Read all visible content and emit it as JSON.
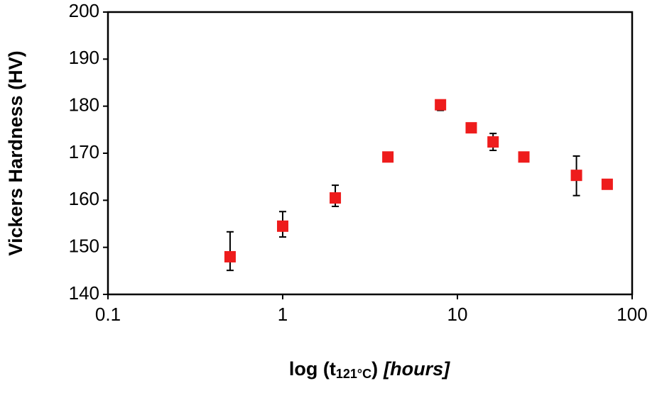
{
  "chart_data": {
    "type": "scatter",
    "x_label": [
      "log (t",
      "121°C",
      ")",
      "[hours]"
    ],
    "y_label": "Vickers Hardness (HV)",
    "x": [
      0.5,
      1,
      2,
      4,
      8,
      12,
      16,
      24,
      48,
      72
    ],
    "series": [
      {
        "color": "#ee1c1c",
        "values": [
          148,
          154.5,
          160.5,
          169.2,
          180.3,
          175.4,
          172.4,
          169.2,
          165.3,
          163.4
        ],
        "errors_plus": [
          5.3,
          3.1,
          2.7,
          0.4,
          0.5,
          0.4,
          1.8,
          0.4,
          4.1,
          0.4
        ],
        "errors_minus": [
          2.9,
          2.3,
          1.8,
          0.4,
          1.2,
          0.4,
          1.8,
          0.4,
          4.3,
          0.4
        ]
      }
    ],
    "xscale": "log",
    "xlim": [
      0.1,
      100
    ],
    "xticks": [
      0.1,
      1,
      10,
      100
    ],
    "ylim": [
      140,
      200
    ],
    "yticks": [
      140,
      150,
      160,
      170,
      180,
      190,
      200
    ],
    "grid": false
  }
}
